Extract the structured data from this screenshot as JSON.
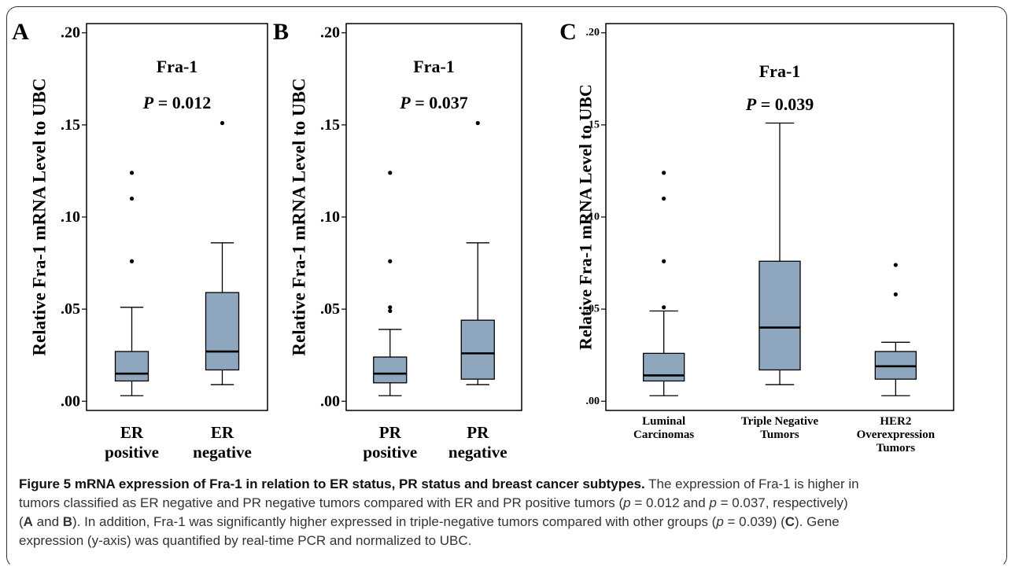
{
  "figure": {
    "colors": {
      "box_fill": "#8fa6bf",
      "stroke": "#000000",
      "panel_bg": "#ffffff"
    }
  },
  "chart_data": [
    {
      "type": "box",
      "panel": "A",
      "gene": "Fra-1",
      "p_prefix": "P",
      "p_value": "= 0.012",
      "ylabel": "Relative Fra-1 mRNA Level to UBC",
      "ylim": [
        -0.005,
        0.205
      ],
      "yticks": [
        0.0,
        0.05,
        0.1,
        0.15,
        0.2
      ],
      "ytick_labels": [
        ".00",
        ".05",
        ".10",
        ".15",
        ".20"
      ],
      "categories": [
        [
          "ER",
          "positive"
        ],
        [
          "ER",
          "negative"
        ]
      ],
      "boxes": [
        {
          "min": 0.003,
          "q1": 0.011,
          "median": 0.015,
          "q3": 0.027,
          "max": 0.051,
          "outliers": [
            0.076,
            0.11,
            0.124
          ]
        },
        {
          "min": 0.009,
          "q1": 0.017,
          "median": 0.027,
          "q3": 0.059,
          "max": 0.086,
          "outliers": [
            0.151
          ]
        }
      ]
    },
    {
      "type": "box",
      "panel": "B",
      "gene": "Fra-1",
      "p_prefix": "P",
      "p_value": "= 0.037",
      "ylabel": "Relative Fra-1 mRNA Level to UBC",
      "ylim": [
        -0.005,
        0.205
      ],
      "yticks": [
        0.0,
        0.05,
        0.1,
        0.15,
        0.2
      ],
      "ytick_labels": [
        ".00",
        ".05",
        ".10",
        ".15",
        ".20"
      ],
      "categories": [
        [
          "PR",
          "positive"
        ],
        [
          "PR",
          "negative"
        ]
      ],
      "boxes": [
        {
          "min": 0.003,
          "q1": 0.01,
          "median": 0.015,
          "q3": 0.024,
          "max": 0.039,
          "outliers": [
            0.049,
            0.051,
            0.076,
            0.124
          ]
        },
        {
          "min": 0.009,
          "q1": 0.012,
          "median": 0.026,
          "q3": 0.044,
          "max": 0.086,
          "outliers": [
            0.151
          ]
        }
      ]
    },
    {
      "type": "box",
      "panel": "C",
      "gene": "Fra-1",
      "p_prefix": "P",
      "p_value": "= 0.039",
      "ylabel": "Relative Fra-1 mRNA Level to UBC",
      "ylim": [
        -0.005,
        0.205
      ],
      "yticks": [
        0.0,
        0.05,
        0.1,
        0.15,
        0.2
      ],
      "ytick_labels": [
        ".00",
        ".05",
        ".10",
        ".15",
        ".20"
      ],
      "categories": [
        [
          "Luminal",
          "Carcinomas"
        ],
        [
          "Triple Negative",
          "Tumors"
        ],
        [
          "HER2",
          "Overexpression",
          "Tumors"
        ]
      ],
      "boxes": [
        {
          "min": 0.003,
          "q1": 0.011,
          "median": 0.014,
          "q3": 0.026,
          "max": 0.049,
          "outliers": [
            0.051,
            0.076,
            0.11,
            0.124
          ]
        },
        {
          "min": 0.009,
          "q1": 0.017,
          "median": 0.04,
          "q3": 0.076,
          "max": 0.151,
          "outliers": []
        },
        {
          "min": 0.003,
          "q1": 0.012,
          "median": 0.019,
          "q3": 0.027,
          "max": 0.032,
          "outliers": [
            0.058,
            0.074
          ]
        }
      ]
    }
  ],
  "caption": {
    "title": "Figure 5 mRNA expression of Fra-1 in relation to ER status, PR status and breast cancer subtypes.",
    "line1_a": " The expression of Fra-1 is higher in",
    "line2_a": "tumors classified as ER negative and PR negative tumors compared with ER and PR positive tumors (",
    "line2_p1": "p",
    "line2_b": " = 0.012 and ",
    "line2_p2": "p",
    "line2_c": " = 0.037, respectively)",
    "line3_a": "(",
    "line3_A": "A",
    "line3_and": " and ",
    "line3_B": "B",
    "line3_b": "). In addition, Fra-1 was significantly higher expressed in triple-negative tumors compared with other groups (",
    "line3_p": "p",
    "line3_c": " = 0.039) (",
    "line3_C": "C",
    "line3_d": "). Gene",
    "line4": "expression (y-axis) was quantified by real-time PCR and normalized to UBC."
  }
}
